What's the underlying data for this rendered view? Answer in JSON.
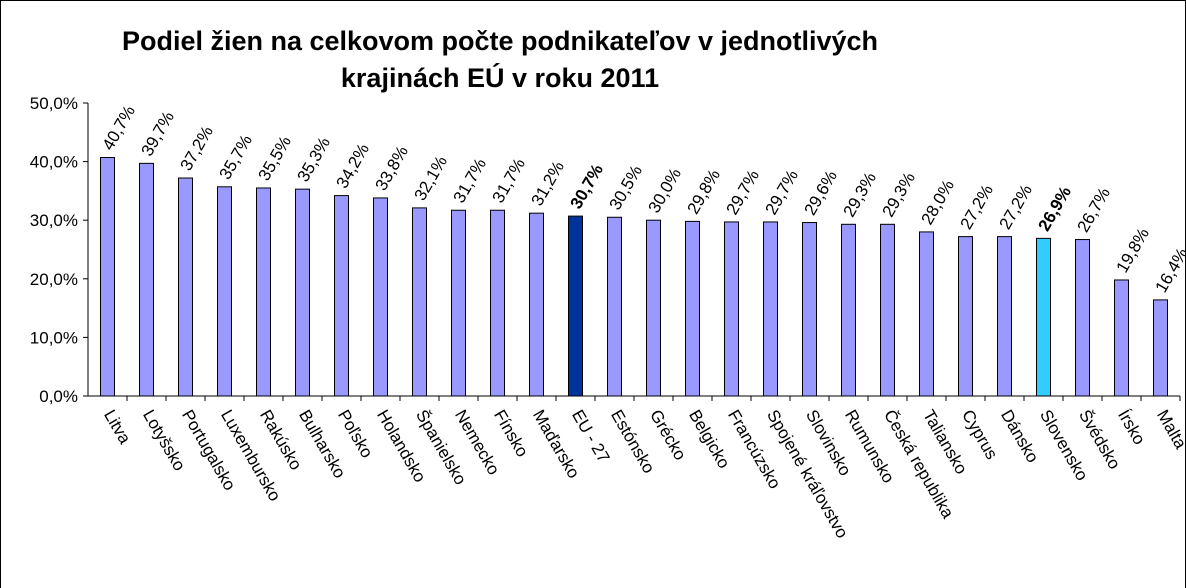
{
  "chart_data": {
    "type": "bar",
    "title": [
      "Podiel žien na celkovom počte podnikateľov v jednotlivých",
      "krajinách EÚ v roku 2011"
    ],
    "categories": [
      "Litva",
      "Lotyšsko",
      "Portugalsko",
      "Luxembursko",
      "Rakúsko",
      "Bulharsko",
      "Poľsko",
      "Holandsko",
      "Španielsko",
      "Nemecko",
      "Fínsko",
      "Maďarsko",
      "EU - 27",
      "Estónsko",
      "Grécko",
      "Belgicko",
      "Francúzsko",
      "Spojené kráľovstvo",
      "Slovinsko",
      "Rumunsko",
      "Česká republika",
      "Taliansko",
      "Cyprus",
      "Dánsko",
      "Slovensko",
      "Švédsko",
      "Írsko",
      "Malta"
    ],
    "values": [
      40.7,
      39.7,
      37.2,
      35.7,
      35.5,
      35.3,
      34.2,
      33.8,
      32.1,
      31.7,
      31.7,
      31.2,
      30.7,
      30.5,
      30.0,
      29.8,
      29.7,
      29.7,
      29.6,
      29.3,
      29.3,
      28.0,
      27.2,
      27.2,
      26.9,
      26.7,
      19.8,
      16.4
    ],
    "value_labels": [
      "40,7%",
      "39,7%",
      "37,2%",
      "35,7%",
      "35,5%",
      "35,3%",
      "34,2%",
      "33,8%",
      "32,1%",
      "31,7%",
      "31,7%",
      "31,2%",
      "30,7%",
      "30,5%",
      "30,0%",
      "29,8%",
      "29,7%",
      "29,7%",
      "29,6%",
      "29,3%",
      "29,3%",
      "28,0%",
      "27,2%",
      "27,2%",
      "26,9%",
      "26,7%",
      "19,8%",
      "16,4%"
    ],
    "color": "#9999ff",
    "colors": [
      "#9999ff",
      "#9999ff",
      "#9999ff",
      "#9999ff",
      "#9999ff",
      "#9999ff",
      "#9999ff",
      "#9999ff",
      "#9999ff",
      "#9999ff",
      "#9999ff",
      "#9999ff",
      "#003399",
      "#9999ff",
      "#9999ff",
      "#9999ff",
      "#9999ff",
      "#9999ff",
      "#9999ff",
      "#9999ff",
      "#9999ff",
      "#9999ff",
      "#9999ff",
      "#9999ff",
      "#33ccff",
      "#9999ff",
      "#9999ff",
      "#9999ff"
    ],
    "ylim": [
      0,
      50
    ],
    "yticks": [
      {
        "value": 0,
        "label": "0,0%"
      },
      {
        "value": 10,
        "label": "10,0%"
      },
      {
        "value": 20,
        "label": "20,0%"
      },
      {
        "value": 30,
        "label": "30,0%"
      },
      {
        "value": 40,
        "label": "40,0%"
      },
      {
        "value": 50,
        "label": "50,0%"
      }
    ],
    "grid": false
  }
}
